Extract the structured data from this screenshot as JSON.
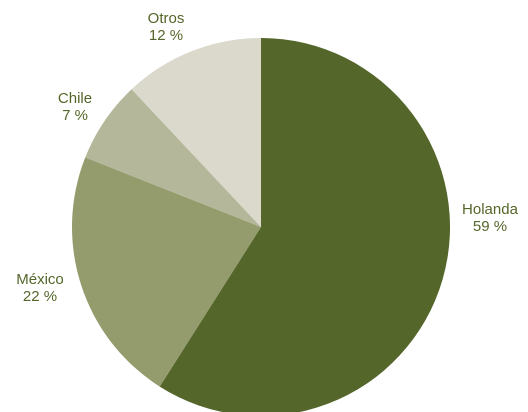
{
  "chart_data": {
    "type": "pie",
    "categories": [
      "Holanda",
      "México",
      "Chile",
      "Otros"
    ],
    "values": [
      59,
      22,
      7,
      12
    ],
    "value_labels": [
      "59 %",
      "22 %",
      "7 %",
      "12 %"
    ],
    "colors": [
      "#546629",
      "#949b6c",
      "#b4b799",
      "#dad9cc"
    ]
  }
}
